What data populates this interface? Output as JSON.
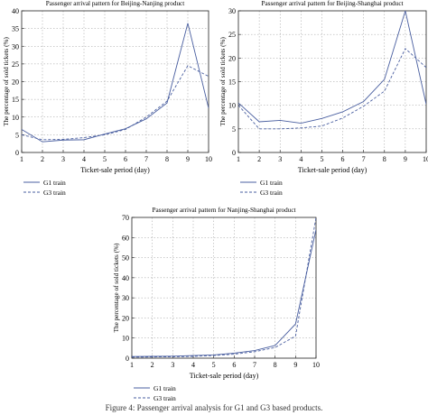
{
  "figure": {
    "caption": "Figure 4: Passenger arrival analysis for G1 and G3 based products."
  },
  "colors": {
    "series_1": "#4a5fa0",
    "series_2": "#4a5fa0",
    "grid": "#9a9a9a",
    "axis": "#222222"
  },
  "chart_data": [
    {
      "type": "line",
      "title": "Passenger arrival pattern for Beijing-Nanjing product",
      "xlabel": "Ticket-sale period (day)",
      "ylabel": "The percentage of sold tickets (%)",
      "xlim": [
        1,
        10
      ],
      "ylim": [
        0,
        40
      ],
      "xticks": [
        "1",
        "2",
        "3",
        "4",
        "5",
        "6",
        "7",
        "8",
        "9",
        "10"
      ],
      "yticks": [
        "0",
        "5",
        "10",
        "15",
        "20",
        "25",
        "30",
        "35",
        "40"
      ],
      "grid": true,
      "legend_position": "below",
      "x": [
        1,
        2,
        3,
        4,
        5,
        6,
        7,
        8,
        9,
        10
      ],
      "series": [
        {
          "name": "G1 train",
          "style": "solid",
          "values": [
            6.5,
            3.0,
            3.5,
            3.6,
            5.2,
            6.7,
            9.5,
            14.0,
            36.5,
            12.5
          ]
        },
        {
          "name": "G3 train",
          "style": "dashed",
          "values": [
            5.0,
            3.6,
            3.7,
            4.2,
            5.0,
            6.5,
            10.0,
            14.5,
            24.5,
            21.5
          ]
        }
      ]
    },
    {
      "type": "line",
      "title": "Passenger arrival pattern for Beijing-Shanghai product",
      "xlabel": "Ticket-sale period (day)",
      "ylabel": "The percentage of sold tickets (%)",
      "xlim": [
        1,
        10
      ],
      "ylim": [
        0,
        30
      ],
      "xticks": [
        "1",
        "2",
        "3",
        "4",
        "5",
        "6",
        "7",
        "8",
        "9",
        "10"
      ],
      "yticks": [
        "0",
        "5",
        "10",
        "15",
        "20",
        "25",
        "30"
      ],
      "grid": true,
      "legend_position": "below",
      "x": [
        1,
        2,
        3,
        4,
        5,
        6,
        7,
        8,
        9,
        10
      ],
      "series": [
        {
          "name": "G1 train",
          "style": "solid",
          "values": [
            10.5,
            6.5,
            6.8,
            6.2,
            7.2,
            8.6,
            10.8,
            15.5,
            30.0,
            10.2
          ]
        },
        {
          "name": "G3 train",
          "style": "dashed",
          "values": [
            10.0,
            5.0,
            5.0,
            5.2,
            5.6,
            7.3,
            9.8,
            13.0,
            22.0,
            18.0
          ]
        }
      ]
    },
    {
      "type": "line",
      "title": "Passenger arrival pattern for Nanjing-Shanghai product",
      "xlabel": "Ticket-sale period (day)",
      "ylabel": "The percentage of sold tickets (%)",
      "xlim": [
        1,
        10
      ],
      "ylim": [
        0,
        70
      ],
      "xticks": [
        "1",
        "2",
        "3",
        "4",
        "5",
        "6",
        "7",
        "8",
        "9",
        "10"
      ],
      "yticks": [
        "0",
        "10",
        "20",
        "30",
        "40",
        "50",
        "60",
        "70"
      ],
      "grid": true,
      "legend_position": "below",
      "x": [
        1,
        2,
        3,
        4,
        5,
        6,
        7,
        8,
        9,
        10
      ],
      "series": [
        {
          "name": "G1 train",
          "style": "solid",
          "values": [
            0.8,
            0.9,
            1.0,
            1.3,
            1.6,
            2.5,
            3.8,
            6.3,
            17.0,
            64.0
          ]
        },
        {
          "name": "G3 train",
          "style": "dashed",
          "values": [
            0.5,
            0.6,
            0.7,
            0.9,
            1.3,
            2.0,
            3.2,
            5.3,
            11.0,
            70.0
          ]
        }
      ]
    }
  ]
}
